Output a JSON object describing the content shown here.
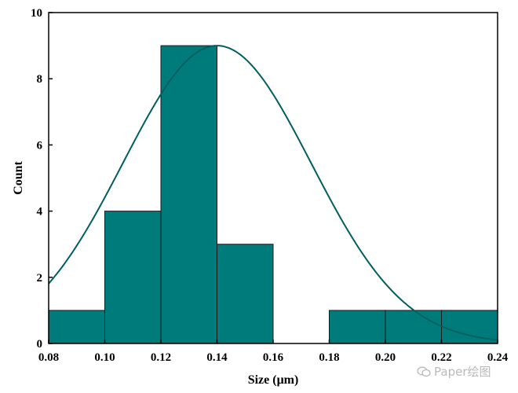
{
  "chart_data": {
    "type": "bar",
    "bin_edges": [
      0.08,
      0.1,
      0.12,
      0.14,
      0.16,
      0.18,
      0.2,
      0.22,
      0.24
    ],
    "values": [
      1,
      4,
      9,
      3,
      0,
      1,
      1,
      1
    ],
    "xlabel": "Size (μm)",
    "ylabel": "Count",
    "xlim": [
      0.08,
      0.24
    ],
    "ylim": [
      0,
      10
    ],
    "xticks": [
      "0.08",
      "0.10",
      "0.12",
      "0.14",
      "0.16",
      "0.18",
      "0.20",
      "0.22",
      "0.24"
    ],
    "yticks": [
      "0",
      "2",
      "4",
      "6",
      "8",
      "10"
    ],
    "fit_curve": {
      "type": "gaussian",
      "mean": 0.14,
      "sigma": 0.0335,
      "peak": 9
    },
    "grid": false,
    "legend": "none",
    "bar_color": "#007b7b",
    "bar_edge_color": "#1a1a1a",
    "curve_color": "#005f5f"
  },
  "watermark": {
    "text": "Paper绘图"
  }
}
